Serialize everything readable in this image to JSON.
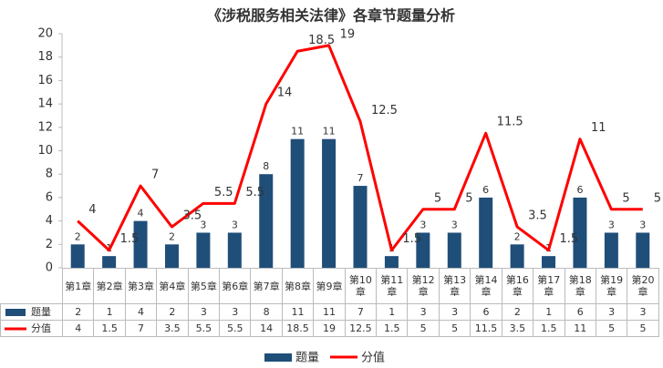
{
  "chart_data": {
    "type": "bar-line",
    "title": "《涉税服务相关法律》各章节题量分析",
    "categories": [
      "第1章",
      "第2章",
      "第3章",
      "第4章",
      "第5章",
      "第6章",
      "第7章",
      "第8章",
      "第9章",
      "第10章",
      "第11章",
      "第12章",
      "第13章",
      "第14章",
      "第16章",
      "第17章",
      "第18章",
      "第19章",
      "第20章"
    ],
    "series": [
      {
        "name": "题量",
        "type": "bar",
        "color": "#1f4e79",
        "values": [
          2,
          1,
          4,
          2,
          3,
          3,
          8,
          11,
          11,
          7,
          1,
          3,
          3,
          6,
          2,
          1,
          6,
          3,
          3
        ]
      },
      {
        "name": "分值",
        "type": "line",
        "color": "#ff0000",
        "values": [
          4,
          1.5,
          7,
          3.5,
          5.5,
          5.5,
          14,
          18.5,
          19,
          12.5,
          1.5,
          5,
          5,
          11.5,
          3.5,
          1.5,
          11,
          5,
          5
        ]
      }
    ],
    "ylim": [
      0,
      20
    ],
    "yticks": [
      0,
      2,
      4,
      6,
      8,
      10,
      12,
      14,
      16,
      18,
      20
    ],
    "grid": false
  }
}
